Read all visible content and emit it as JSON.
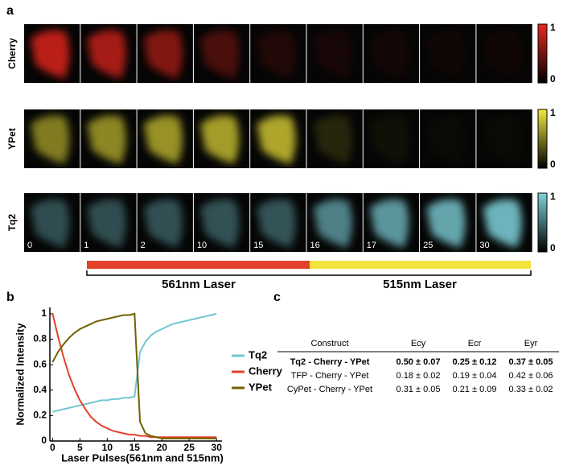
{
  "panel_labels": [
    "a",
    "b",
    "c"
  ],
  "image_rows": [
    {
      "label": "Cherry",
      "colorbar_ticks": [
        1,
        0
      ]
    },
    {
      "label": "YPet",
      "colorbar_ticks": [
        1,
        0
      ]
    },
    {
      "label": "Tq2",
      "colorbar_ticks": [
        1,
        0
      ]
    }
  ],
  "frames": [
    0,
    1,
    2,
    10,
    15,
    16,
    17,
    25,
    30
  ],
  "lasers": [
    "561nm Laser",
    "515nm Laser"
  ],
  "chart_data": {
    "type": "line",
    "ylabel": "Normalized Intensity",
    "xlabel": "Laser Pulses(561nm and 515nm)",
    "x": [
      0,
      1,
      2,
      3,
      4,
      5,
      6,
      7,
      8,
      9,
      10,
      11,
      12,
      13,
      14,
      15,
      16,
      17,
      18,
      19,
      20,
      21,
      22,
      23,
      24,
      25,
      26,
      27,
      28,
      29,
      30
    ],
    "xlim": [
      -0.5,
      31
    ],
    "xticks": [
      0,
      5,
      10,
      15,
      20,
      25,
      30
    ],
    "ylim": [
      0,
      1.05
    ],
    "yticks": [
      0,
      0.2,
      0.4,
      0.6,
      0.8,
      1
    ],
    "series": [
      {
        "name": "Tq2",
        "color": "#72c7d1",
        "values": [
          0.23,
          0.24,
          0.25,
          0.26,
          0.27,
          0.28,
          0.29,
          0.3,
          0.31,
          0.32,
          0.32,
          0.33,
          0.33,
          0.34,
          0.34,
          0.35,
          0.7,
          0.78,
          0.83,
          0.86,
          0.88,
          0.9,
          0.92,
          0.93,
          0.94,
          0.95,
          0.96,
          0.97,
          0.98,
          0.99,
          1
        ]
      },
      {
        "name": "Cherry",
        "color": "#e2412b",
        "values": [
          1,
          0.82,
          0.66,
          0.52,
          0.41,
          0.32,
          0.25,
          0.19,
          0.15,
          0.12,
          0.1,
          0.08,
          0.07,
          0.06,
          0.05,
          0.05,
          0.04,
          0.04,
          0.03,
          0.03,
          0.03,
          0.03,
          0.03,
          0.03,
          0.03,
          0.03,
          0.03,
          0.03,
          0.03,
          0.03,
          0.03
        ]
      },
      {
        "name": "YPet",
        "color": "#6e6200",
        "values": [
          0.62,
          0.7,
          0.76,
          0.81,
          0.85,
          0.88,
          0.9,
          0.92,
          0.94,
          0.95,
          0.96,
          0.97,
          0.98,
          0.99,
          0.99,
          1,
          0.15,
          0.06,
          0.04,
          0.03,
          0.02,
          0.02,
          0.02,
          0.02,
          0.02,
          0.02,
          0.02,
          0.02,
          0.02,
          0.02,
          0.02
        ]
      }
    ]
  },
  "table": {
    "header": [
      "Construct",
      "Ecy",
      "Ecr",
      "Eyr"
    ],
    "rows": [
      [
        "Tq2 - Cherry - YPet",
        "0.50 ± 0.07",
        "0.25 ± 0.12",
        "0.37 ± 0.05"
      ],
      [
        "TFP - Cherry - YPet",
        "0.18 ± 0.02",
        "0.19 ± 0.04",
        "0.42 ± 0.06"
      ],
      [
        "CyPet - Cherry - YPet",
        "0.31 ± 0.05",
        "0.21 ± 0.09",
        "0.33 ± 0.02"
      ]
    ]
  }
}
